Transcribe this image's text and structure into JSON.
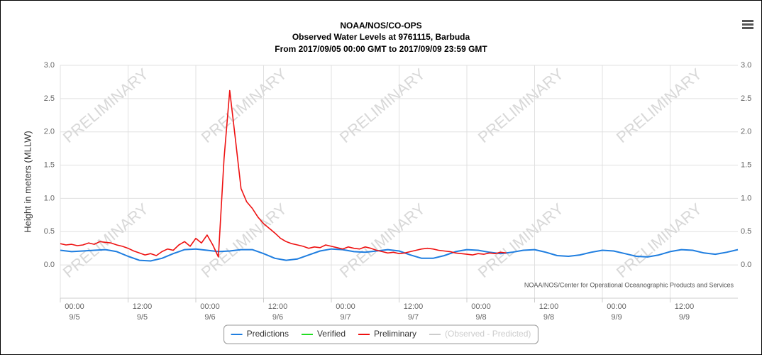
{
  "chart_data": {
    "type": "line",
    "title": "NOAA/NOS/CO-OPS",
    "subtitle": [
      "Observed Water Levels at 9761115, Barbuda",
      "From 2017/09/05 00:00 GMT to 2017/09/09 23:59 GMT"
    ],
    "y_label": "Height in meters (MLLW)",
    "watermark": "PRELIMINARY",
    "credits": "NOAA/NOS/Center for Operational Oceanographic Products and Services",
    "xlim": [
      0,
      120
    ],
    "xticks": [
      {
        "value": 0,
        "label": "00:00",
        "date": "9/5"
      },
      {
        "value": 12,
        "label": "12:00",
        "date": "9/5"
      },
      {
        "value": 24,
        "label": "00:00",
        "date": "9/6"
      },
      {
        "value": 36,
        "label": "12:00",
        "date": "9/6"
      },
      {
        "value": 48,
        "label": "00:00",
        "date": "9/7"
      },
      {
        "value": 60,
        "label": "12:00",
        "date": "9/7"
      },
      {
        "value": 72,
        "label": "00:00",
        "date": "9/8"
      },
      {
        "value": 84,
        "label": "12:00",
        "date": "9/8"
      },
      {
        "value": 96,
        "label": "00:00",
        "date": "9/9"
      },
      {
        "value": 108,
        "label": "12:00",
        "date": "9/9"
      }
    ],
    "ylim": [
      -0.5,
      3.0
    ],
    "yticks": [
      {
        "value": 0,
        "label": "0.0"
      },
      0.5,
      {
        "value": 1,
        "label": "1.0"
      },
      1.5,
      {
        "value": 2,
        "label": "2.0"
      },
      2.5,
      {
        "value": 3,
        "label": "3.0"
      }
    ],
    "y2lim": [
      -0.5,
      3.0
    ],
    "y2ticks": [
      {
        "value": 0,
        "label": "0.0"
      },
      0.5,
      {
        "value": 1,
        "label": "1.0"
      },
      1.5,
      {
        "value": 2,
        "label": "2.0"
      },
      2.5,
      {
        "value": 3,
        "label": "3.0"
      }
    ],
    "grid": true,
    "legend": "bottom",
    "series": [
      {
        "name": "Predictions",
        "color": "#1f7ee0",
        "x": [
          0,
          2,
          4,
          6,
          8,
          10,
          12,
          14,
          16,
          18,
          20,
          22,
          24,
          26,
          28,
          30,
          32,
          34,
          36,
          38,
          40,
          42,
          44,
          46,
          48,
          50,
          52,
          54,
          56,
          58,
          60,
          62,
          64,
          66,
          68,
          70,
          72,
          74,
          76,
          78,
          80,
          82,
          84,
          86,
          88,
          90,
          92,
          94,
          96,
          98,
          100,
          102,
          104,
          106,
          108,
          110,
          112,
          114,
          116,
          118,
          120
        ],
        "values": [
          0.22,
          0.2,
          0.21,
          0.22,
          0.23,
          0.2,
          0.13,
          0.07,
          0.06,
          0.1,
          0.17,
          0.23,
          0.24,
          0.22,
          0.2,
          0.21,
          0.23,
          0.23,
          0.17,
          0.1,
          0.07,
          0.09,
          0.15,
          0.21,
          0.24,
          0.23,
          0.2,
          0.19,
          0.21,
          0.23,
          0.21,
          0.15,
          0.1,
          0.1,
          0.14,
          0.2,
          0.23,
          0.22,
          0.19,
          0.17,
          0.19,
          0.22,
          0.23,
          0.19,
          0.14,
          0.13,
          0.15,
          0.19,
          0.22,
          0.21,
          0.17,
          0.13,
          0.12,
          0.15,
          0.2,
          0.23,
          0.22,
          0.18,
          0.16,
          0.19,
          0.23
        ]
      },
      {
        "name": "Verified",
        "color": "#22dd22",
        "x": [],
        "values": []
      },
      {
        "name": "Preliminary",
        "color": "#ee1111",
        "x": [
          0,
          1,
          2,
          3,
          4,
          5,
          6,
          7,
          8,
          9,
          10,
          11,
          12,
          13,
          14,
          15,
          16,
          17,
          18,
          19,
          20,
          21,
          22,
          23,
          24,
          25,
          26,
          27,
          28,
          29,
          30,
          31,
          32,
          33,
          34,
          35,
          36,
          37,
          38,
          39,
          40,
          41,
          42,
          43,
          44,
          45,
          46,
          47,
          48,
          49,
          50,
          51,
          52,
          53,
          54,
          55,
          56,
          57,
          58,
          59,
          60,
          61,
          62,
          63,
          64,
          65,
          66,
          67,
          68,
          69,
          70,
          71,
          72,
          73,
          74,
          75,
          76,
          77,
          78,
          79
        ],
        "values": [
          0.32,
          0.3,
          0.31,
          0.29,
          0.3,
          0.33,
          0.31,
          0.35,
          0.34,
          0.33,
          0.3,
          0.28,
          0.25,
          0.21,
          0.18,
          0.15,
          0.17,
          0.14,
          0.2,
          0.24,
          0.22,
          0.3,
          0.35,
          0.28,
          0.4,
          0.33,
          0.45,
          0.3,
          0.12,
          1.6,
          2.62,
          1.9,
          1.15,
          0.95,
          0.85,
          0.72,
          0.62,
          0.55,
          0.48,
          0.4,
          0.35,
          0.32,
          0.3,
          0.28,
          0.25,
          0.27,
          0.26,
          0.3,
          0.28,
          0.26,
          0.24,
          0.27,
          0.25,
          0.24,
          0.27,
          0.25,
          0.22,
          0.2,
          0.18,
          0.19,
          0.17,
          0.18,
          0.2,
          0.22,
          0.24,
          0.25,
          0.24,
          0.22,
          0.21,
          0.2,
          0.18,
          0.17,
          0.16,
          0.15,
          0.17,
          0.16,
          0.18,
          0.17,
          0.19,
          0.18
        ]
      },
      {
        "name": "(Observed - Predicted)",
        "color": "#cccccc",
        "x": [],
        "values": [],
        "disabled": true
      }
    ]
  }
}
